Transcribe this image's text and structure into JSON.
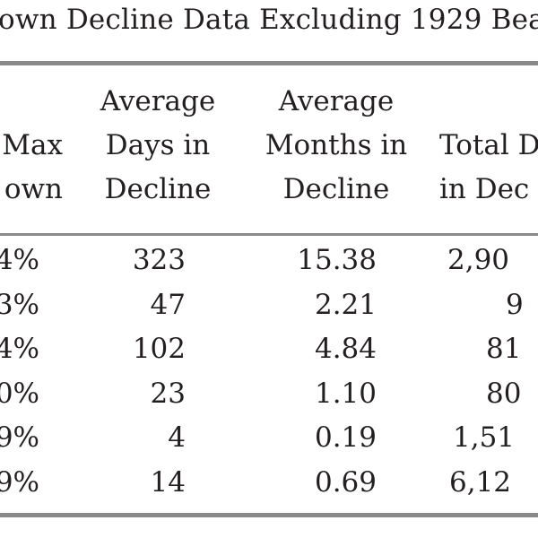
{
  "title": "own Decline Data Excluding 1929 Bea",
  "headers": {
    "col1": [
      "Max",
      "own"
    ],
    "col2": [
      "Average",
      "Days in",
      "Decline"
    ],
    "col3": [
      "Average",
      "Months in",
      "Decline"
    ],
    "col4": [
      "Total D",
      "in Dec"
    ]
  },
  "rows": [
    {
      "max_drawdown": "4%",
      "avg_days": "323",
      "avg_months": "15.38",
      "total": "2,90"
    },
    {
      "max_drawdown": "3%",
      "avg_days": "47",
      "avg_months": "2.21",
      "total": "9"
    },
    {
      "max_drawdown": "4%",
      "avg_days": "102",
      "avg_months": "4.84",
      "total": "81"
    },
    {
      "max_drawdown": "0%",
      "avg_days": "23",
      "avg_months": "1.10",
      "total": "80"
    },
    {
      "max_drawdown": "9%",
      "avg_days": "4",
      "avg_months": "0.19",
      "total": "1,51"
    },
    {
      "max_drawdown": "9%",
      "avg_days": "14",
      "avg_months": "0.69",
      "total": "6,12"
    }
  ]
}
